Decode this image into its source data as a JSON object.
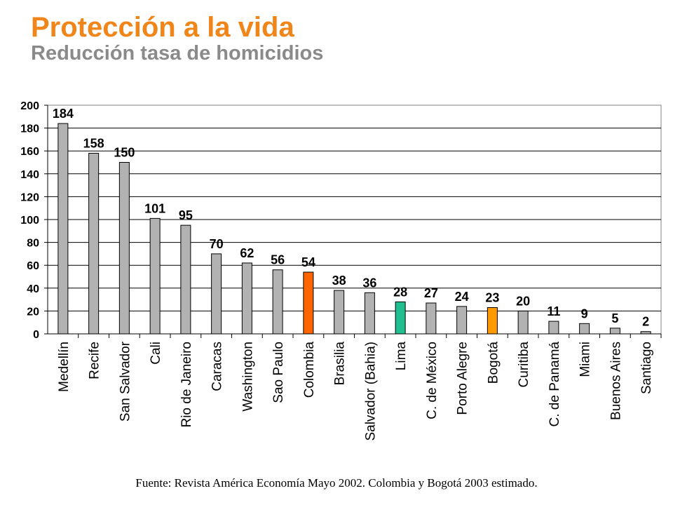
{
  "header": {
    "title": "Protección a la vida",
    "subtitle": "Reducción tasa de homicidios"
  },
  "footer": {
    "source": "Fuente: Revista América Economía Mayo 2002. Colombia y Bogotá 2003 estimado."
  },
  "colors": {
    "title": "#f08519",
    "subtitle": "#8a8a8a",
    "bar_default": "#b2b2b2",
    "bar_colombia": "#ff6600",
    "bar_lima": "#1fbf8f",
    "bar_bogota": "#ff9900",
    "grid": "#000000"
  },
  "chart_data": {
    "type": "bar",
    "categories": [
      "Medellín",
      "Recife",
      "San Salvador",
      "Cali",
      "Rio de Janeiro",
      "Caracas",
      "Washington",
      "Sao Paulo",
      "Colombia",
      "Brasilia",
      "Salvador (Bahia)",
      "Lima",
      "C. de México",
      "Porto Alegre",
      "Bogotá",
      "Curitiba",
      "C. de Panamá",
      "Miami",
      "Buenos Aires",
      "Santiago"
    ],
    "values": [
      184,
      158,
      150,
      101,
      95,
      70,
      62,
      56,
      54,
      38,
      36,
      28,
      27,
      24,
      23,
      20,
      11,
      9,
      5,
      2
    ],
    "bar_colors": [
      "#b2b2b2",
      "#b2b2b2",
      "#b2b2b2",
      "#b2b2b2",
      "#b2b2b2",
      "#b2b2b2",
      "#b2b2b2",
      "#b2b2b2",
      "#ff6600",
      "#b2b2b2",
      "#b2b2b2",
      "#1fbf8f",
      "#b2b2b2",
      "#b2b2b2",
      "#ff9900",
      "#b2b2b2",
      "#b2b2b2",
      "#b2b2b2",
      "#b2b2b2",
      "#b2b2b2"
    ],
    "data_labels": [
      "184",
      "158",
      "150",
      "101",
      "95",
      "70",
      "62",
      "56",
      "54",
      "38",
      "36",
      "28",
      "27",
      "24",
      "23",
      "20",
      "11",
      "9",
      "5",
      "2"
    ],
    "yticks": [
      0,
      20,
      40,
      60,
      80,
      100,
      120,
      140,
      160,
      180,
      200
    ],
    "ylim": [
      0,
      200
    ],
    "xlabel": "",
    "ylabel": "",
    "grid": true,
    "legend": "none"
  }
}
